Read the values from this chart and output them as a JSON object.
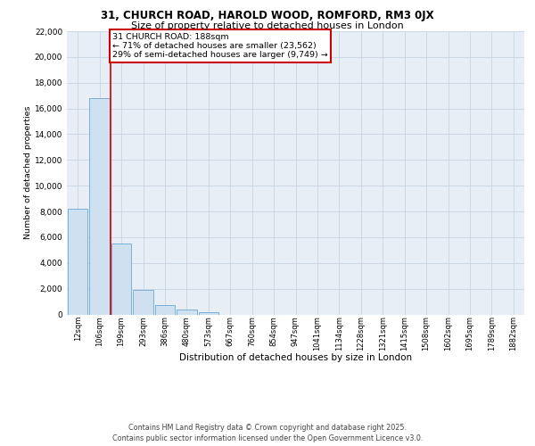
{
  "title1": "31, CHURCH ROAD, HAROLD WOOD, ROMFORD, RM3 0JX",
  "title2": "Size of property relative to detached houses in London",
  "xlabel": "Distribution of detached houses by size in London",
  "ylabel": "Number of detached properties",
  "categories": [
    "12sqm",
    "106sqm",
    "199sqm",
    "293sqm",
    "386sqm",
    "480sqm",
    "573sqm",
    "667sqm",
    "760sqm",
    "854sqm",
    "947sqm",
    "1041sqm",
    "1134sqm",
    "1228sqm",
    "1321sqm",
    "1415sqm",
    "1508sqm",
    "1602sqm",
    "1695sqm",
    "1789sqm",
    "1882sqm"
  ],
  "values": [
    8200,
    16800,
    5500,
    1900,
    750,
    400,
    200,
    0,
    0,
    0,
    0,
    0,
    0,
    0,
    0,
    0,
    0,
    0,
    0,
    0,
    0
  ],
  "bar_color": "#cfe0f0",
  "bar_edge_color": "#7ab0d8",
  "vline_color": "#cc0000",
  "vline_position": 1.5,
  "property_label": "31 CHURCH ROAD: 188sqm",
  "annotation_line1": "← 71% of detached houses are smaller (23,562)",
  "annotation_line2": "29% of semi-detached houses are larger (9,749) →",
  "ylim_max": 22000,
  "yticks": [
    0,
    2000,
    4000,
    6000,
    8000,
    10000,
    12000,
    14000,
    16000,
    18000,
    20000,
    22000
  ],
  "grid_color": "#c8d4e4",
  "bg_color": "#e8eef6",
  "footer_line1": "Contains HM Land Registry data © Crown copyright and database right 2025.",
  "footer_line2": "Contains public sector information licensed under the Open Government Licence v3.0."
}
